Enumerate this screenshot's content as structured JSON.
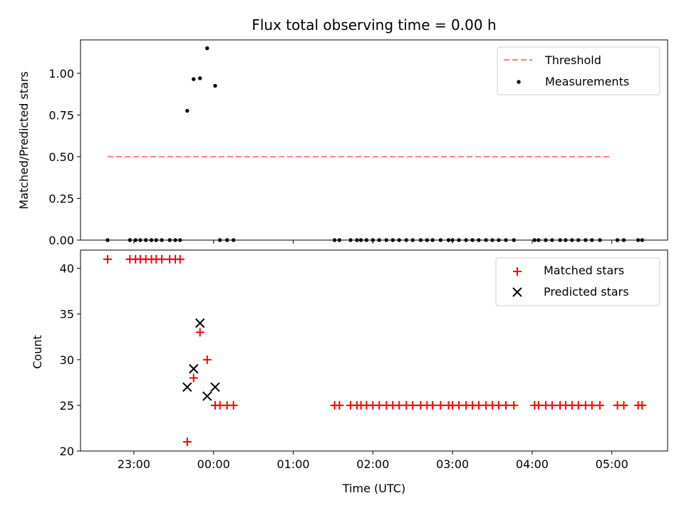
{
  "chart_data": {
    "type": "scatter",
    "title": "Flux total observing time = 0.00 h",
    "xlabel": "Time (UTC)",
    "x_unit": "hours since 00:00 UTC",
    "xlim": [
      -1.67,
      5.7
    ],
    "x_ticks": [
      {
        "value": -1,
        "label": "23:00"
      },
      {
        "value": 0,
        "label": "00:00"
      },
      {
        "value": 1,
        "label": "01:00"
      },
      {
        "value": 2,
        "label": "02:00"
      },
      {
        "value": 3,
        "label": "03:00"
      },
      {
        "value": 4,
        "label": "04:00"
      },
      {
        "value": 5,
        "label": "05:00"
      }
    ],
    "panels": [
      {
        "ylabel": "Matched/Predicted stars",
        "ylim": [
          0,
          1.2
        ],
        "y_ticks": [
          {
            "value": 0,
            "label": "0.00"
          },
          {
            "value": 0.25,
            "label": "0.25"
          },
          {
            "value": 0.5,
            "label": "0.50"
          },
          {
            "value": 0.75,
            "label": "0.75"
          },
          {
            "value": 1.0,
            "label": "1.00"
          }
        ],
        "legend": [
          "Threshold",
          "Measurements"
        ],
        "series": [
          {
            "name": "Threshold",
            "kind": "line",
            "color": "#ff7f7f",
            "style": "dashed",
            "x": [
              -1.33,
              5.0
            ],
            "y": [
              0.5,
              0.5
            ]
          },
          {
            "name": "Measurements",
            "kind": "dot",
            "color": "#000000",
            "x": [
              -1.33,
              -1.05,
              -0.98,
              -0.92,
              -0.85,
              -0.78,
              -0.72,
              -0.65,
              -0.55,
              -0.48,
              -0.42,
              -0.33,
              -0.25,
              -0.17,
              -0.08,
              0.02,
              0.08,
              0.17,
              0.25,
              1.52,
              1.58,
              1.72,
              1.8,
              1.85,
              1.92,
              2.0,
              2.08,
              2.17,
              2.25,
              2.33,
              2.42,
              2.5,
              2.6,
              2.68,
              2.75,
              2.85,
              2.95,
              3.0,
              3.08,
              3.17,
              3.25,
              3.33,
              3.42,
              3.5,
              3.58,
              3.67,
              3.77,
              4.03,
              4.08,
              4.17,
              4.25,
              4.35,
              4.42,
              4.5,
              4.58,
              4.67,
              4.75,
              4.85,
              5.07,
              5.15,
              5.33,
              5.38
            ],
            "y": [
              0,
              0,
              0,
              0,
              0,
              0,
              0,
              0,
              0,
              0,
              0,
              0.775,
              0.965,
              0.97,
              1.15,
              0.925,
              0,
              0,
              0,
              0,
              0,
              0,
              0,
              0,
              0,
              0,
              0,
              0,
              0,
              0,
              0,
              0,
              0,
              0,
              0,
              0,
              0,
              0,
              0,
              0,
              0,
              0,
              0,
              0,
              0,
              0,
              0,
              0,
              0,
              0,
              0,
              0,
              0,
              0,
              0,
              0,
              0,
              0,
              0,
              0,
              0,
              0
            ]
          }
        ]
      },
      {
        "ylabel": "Count",
        "ylim": [
          20,
          42
        ],
        "y_ticks": [
          {
            "value": 20,
            "label": "20"
          },
          {
            "value": 25,
            "label": "25"
          },
          {
            "value": 30,
            "label": "30"
          },
          {
            "value": 35,
            "label": "35"
          },
          {
            "value": 40,
            "label": "40"
          }
        ],
        "legend": [
          "Matched stars",
          "Predicted stars"
        ],
        "series": [
          {
            "name": "Matched stars",
            "kind": "plus",
            "color": "#ff0000",
            "x": [
              -1.33,
              -1.05,
              -0.98,
              -0.92,
              -0.85,
              -0.78,
              -0.72,
              -0.65,
              -0.55,
              -0.48,
              -0.42,
              -0.33,
              -0.25,
              -0.17,
              -0.08,
              0.02,
              0.08,
              0.17,
              0.25,
              1.52,
              1.58,
              1.72,
              1.8,
              1.85,
              1.92,
              2.0,
              2.08,
              2.17,
              2.25,
              2.33,
              2.42,
              2.5,
              2.6,
              2.68,
              2.75,
              2.85,
              2.95,
              3.0,
              3.08,
              3.17,
              3.25,
              3.33,
              3.42,
              3.5,
              3.58,
              3.67,
              3.77,
              4.03,
              4.08,
              4.17,
              4.25,
              4.35,
              4.42,
              4.5,
              4.58,
              4.67,
              4.75,
              4.85,
              5.07,
              5.15,
              5.33,
              5.38
            ],
            "y": [
              41,
              41,
              41,
              41,
              41,
              41,
              41,
              41,
              41,
              41,
              41,
              21,
              28,
              33,
              30,
              25,
              25,
              25,
              25,
              25,
              25,
              25,
              25,
              25,
              25,
              25,
              25,
              25,
              25,
              25,
              25,
              25,
              25,
              25,
              25,
              25,
              25,
              25,
              25,
              25,
              25,
              25,
              25,
              25,
              25,
              25,
              25,
              25,
              25,
              25,
              25,
              25,
              25,
              25,
              25,
              25,
              25,
              25,
              25,
              25,
              25,
              25
            ]
          },
          {
            "name": "Predicted stars",
            "kind": "x",
            "color": "#000000",
            "x": [
              -0.33,
              -0.25,
              -0.17,
              -0.08,
              0.02
            ],
            "y": [
              27,
              29,
              34,
              26,
              27
            ]
          }
        ]
      }
    ]
  }
}
